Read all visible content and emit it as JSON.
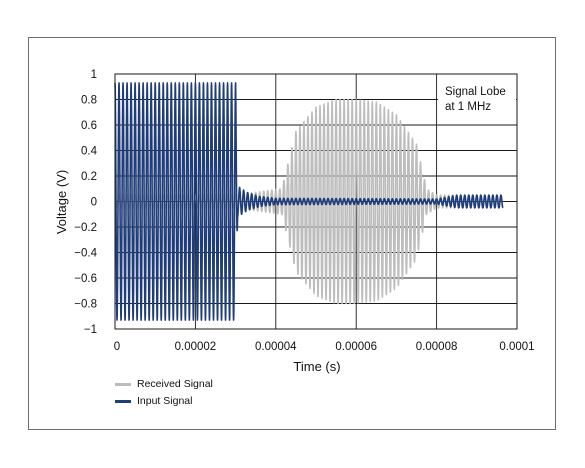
{
  "chart_data": {
    "type": "line",
    "title": "",
    "xlabel": "Time (s)",
    "ylabel": "Voltage (V)",
    "xlim": [
      0,
      0.0001
    ],
    "ylim": [
      -1,
      1
    ],
    "x_ticks": [
      "0",
      "0.00002",
      "0.00004",
      "0.00006",
      "0.00008",
      "0.0001"
    ],
    "y_ticks": [
      "1",
      "0.8",
      "0.6",
      "0.4",
      "0.2",
      "0",
      "−0.2",
      "−0.4",
      "−0.6",
      "−0.8",
      "−1"
    ],
    "grid": true,
    "annotation": [
      "Signal Lobe",
      "at 1 MHz"
    ],
    "legend_position": "bottom-left",
    "series": [
      {
        "name": "Received Signal",
        "color": "#bdbdbd",
        "frequency_hz": 1000000,
        "x_range": [
          0,
          9.65e-05
        ],
        "envelope_description": "small ripple during 0–0.00003 s; burst lobe 0.0000415–0.0000775 s peaking about ±0.8 V near 0.000059 s; residual ±0.05 V ripple afterwards",
        "envelope": [
          [
            0,
            0.05
          ],
          [
            3e-05,
            0.05
          ],
          [
            4.15e-05,
            0.1
          ],
          [
            4.5e-05,
            0.55
          ],
          [
            5e-05,
            0.74
          ],
          [
            5.5e-05,
            0.8
          ],
          [
            5.9e-05,
            0.8
          ],
          [
            6.5e-05,
            0.78
          ],
          [
            7e-05,
            0.68
          ],
          [
            7.5e-05,
            0.45
          ],
          [
            7.75e-05,
            0.1
          ],
          [
            8e-05,
            0.05
          ],
          [
            9.65e-05,
            0.05
          ]
        ]
      },
      {
        "name": "Input Signal",
        "color": "#1f3d7a",
        "frequency_hz": 1000000,
        "x_range": [
          0,
          9.65e-05
        ],
        "envelope_description": "burst of about ±0.93 V from 0 to 0.00003 s, decaying ringing 0.00003–0.00004 s, small ±0.02 V residual, then ±0.05 V near the end",
        "envelope": [
          [
            0,
            0.93
          ],
          [
            3e-05,
            0.93
          ],
          [
            3.05e-05,
            0.12
          ],
          [
            3.3e-05,
            0.07
          ],
          [
            3.6e-05,
            0.04
          ],
          [
            4e-05,
            0.025
          ],
          [
            8e-05,
            0.02
          ],
          [
            8.5e-05,
            0.05
          ],
          [
            9.65e-05,
            0.05
          ]
        ]
      }
    ]
  }
}
